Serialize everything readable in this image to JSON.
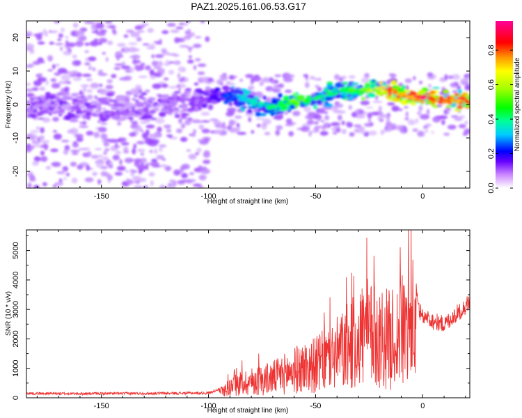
{
  "title": "PAZ1.2025.161.06.53.G17",
  "chart_data": [
    {
      "type": "heatmap",
      "xlabel": "Height of straight line (km)",
      "ylabel": "Frequency (Hz)",
      "xlim": [
        -185,
        22
      ],
      "ylim": [
        -25,
        25
      ],
      "xticks": [
        -150,
        -100,
        -50,
        0
      ],
      "yticks": [
        -20,
        -10,
        0,
        10,
        20
      ],
      "colorbar": {
        "label": "Normalized spectral amplitude",
        "range": [
          0,
          0.97
        ],
        "ticks": [
          "0.0",
          "0.2",
          "0.4",
          "0.6",
          "0.8"
        ],
        "colormap": "hsv-rainbow (white, violet, blue, cyan, green, yellow, orange, red, magenta)"
      },
      "ridge": {
        "description": "dominant frequency ridge vs height",
        "height_km": [
          -185,
          -170,
          -160,
          -150,
          -140,
          -130,
          -120,
          -110,
          -100,
          -90,
          -80,
          -70,
          -60,
          -50,
          -40,
          -30,
          -20,
          -15,
          -10,
          -5,
          0,
          10,
          22
        ],
        "frequency_hz": [
          -1,
          0,
          0,
          -1,
          -1,
          -1,
          0,
          1,
          2,
          3,
          1,
          -1,
          1,
          2,
          4,
          4,
          5,
          4,
          3,
          2,
          2,
          1.5,
          1
        ],
        "peak_amplitude": [
          0.15,
          0.15,
          0.15,
          0.15,
          0.12,
          0.15,
          0.12,
          0.12,
          0.18,
          0.3,
          0.4,
          0.45,
          0.6,
          0.45,
          0.5,
          0.55,
          0.75,
          0.9,
          0.9,
          0.9,
          0.95,
          0.9,
          0.9
        ]
      },
      "grid": false
    },
    {
      "type": "line",
      "xlabel": "Height of straight line (km)",
      "ylabel": "SNR (10 * v/v)",
      "xlim": [
        -185,
        22
      ],
      "ylim": [
        0,
        5700
      ],
      "xticks": [
        -150,
        -100,
        -50,
        0
      ],
      "yticks": [
        0,
        1000,
        2000,
        3000,
        4000,
        5000
      ],
      "series": [
        {
          "color": "#ee3333",
          "x": [
            -185,
            -160,
            -130,
            -100,
            -95,
            -90,
            -85,
            -80,
            -75,
            -70,
            -65,
            -60,
            -55,
            -50,
            -45,
            -40,
            -35,
            -30,
            -28,
            -25,
            -20,
            -15,
            -12,
            -8,
            -4,
            -2,
            0,
            5,
            10,
            15,
            20,
            22
          ],
          "y": [
            150,
            140,
            150,
            160,
            300,
            600,
            800,
            900,
            1000,
            1100,
            1300,
            1500,
            1700,
            1800,
            2100,
            2400,
            2800,
            3200,
            3600,
            3500,
            3300,
            3200,
            3400,
            3800,
            4200,
            3000,
            2800,
            2600,
            2500,
            2800,
            3100,
            3300
          ]
        }
      ],
      "grid": false
    }
  ]
}
